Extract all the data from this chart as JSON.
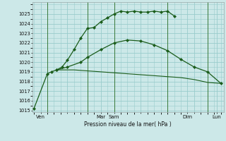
{
  "background_color": "#cce8e8",
  "grid_color": "#99cccc",
  "line_color_dark": "#1a5c1a",
  "line_color_mid": "#2d7a2d",
  "ylim": [
    1014.8,
    1026.2
  ],
  "ylabel_text": "Pression niveau de la mer( hPa )",
  "yticks": [
    1015,
    1016,
    1017,
    1018,
    1019,
    1020,
    1021,
    1022,
    1023,
    1024,
    1025
  ],
  "xlim": [
    -0.05,
    7.1
  ],
  "vline_positions": [
    0.5,
    2.0,
    3.0,
    5.0,
    6.5
  ],
  "xtick_positions": [
    0.25,
    1.25,
    2.5,
    3.0,
    4.0,
    5.75,
    6.0,
    6.85
  ],
  "xtick_labels": [
    "Ven",
    "",
    "Mar",
    "Sam",
    "",
    "Dim",
    "",
    "Lun"
  ],
  "series1": {
    "x": [
      0.0,
      0.5,
      0.65,
      0.85,
      1.05,
      1.25,
      1.5,
      1.75,
      2.0,
      2.25,
      2.5,
      2.75,
      3.0,
      3.25,
      3.5,
      3.75,
      4.0,
      4.25,
      4.5,
      4.75,
      5.0,
      5.25
    ],
    "y": [
      1015.2,
      1018.8,
      1019.0,
      1019.2,
      1019.5,
      1020.2,
      1021.3,
      1022.5,
      1023.5,
      1023.6,
      1024.2,
      1024.6,
      1025.0,
      1025.3,
      1025.2,
      1025.3,
      1025.2,
      1025.2,
      1025.3,
      1025.2,
      1025.3,
      1024.8
    ]
  },
  "series2": {
    "x": [
      0.85,
      1.25,
      1.75,
      2.0,
      2.5,
      3.0,
      3.5,
      4.0,
      4.5,
      5.0,
      5.5,
      6.0,
      6.5,
      7.0
    ],
    "y": [
      1019.2,
      1019.5,
      1020.0,
      1020.5,
      1021.3,
      1022.0,
      1022.3,
      1022.2,
      1021.8,
      1021.2,
      1020.3,
      1019.5,
      1019.0,
      1017.8
    ]
  },
  "series3": {
    "x": [
      0.85,
      1.5,
      2.0,
      2.5,
      3.0,
      3.5,
      4.0,
      4.5,
      5.0,
      5.5,
      6.0,
      6.5,
      7.0
    ],
    "y": [
      1019.2,
      1019.2,
      1019.1,
      1019.0,
      1018.9,
      1018.8,
      1018.7,
      1018.6,
      1018.5,
      1018.4,
      1018.2,
      1017.9,
      1017.8
    ]
  }
}
